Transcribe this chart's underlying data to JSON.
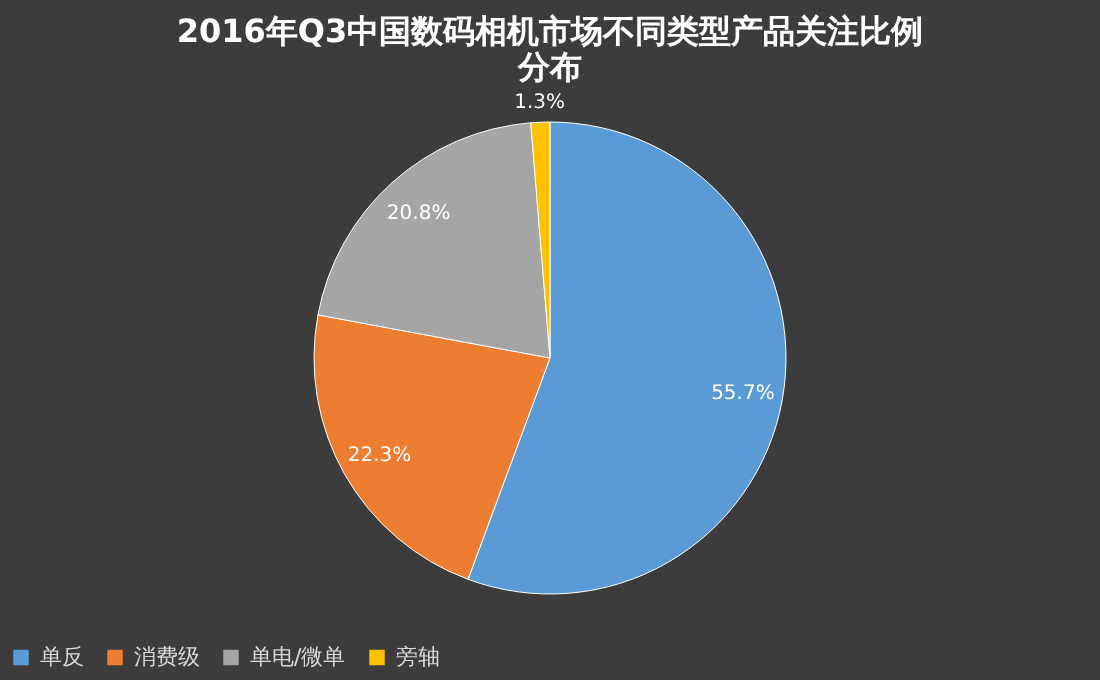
{
  "chart_data": {
    "type": "pie",
    "title": "2016年Q3中国数码相机市场不同类型产品关注比例分布",
    "categories": [
      "单反",
      "消费级",
      "单电/微单",
      "旁轴"
    ],
    "values": [
      55.7,
      22.3,
      20.8,
      1.3
    ],
    "colors": [
      "#5b9bd5",
      "#ed7d31",
      "#a5a5a5",
      "#ffc000"
    ],
    "value_labels": [
      "55.7%",
      "22.3%",
      "20.8%",
      "1.3%"
    ],
    "legend": "bottom"
  }
}
